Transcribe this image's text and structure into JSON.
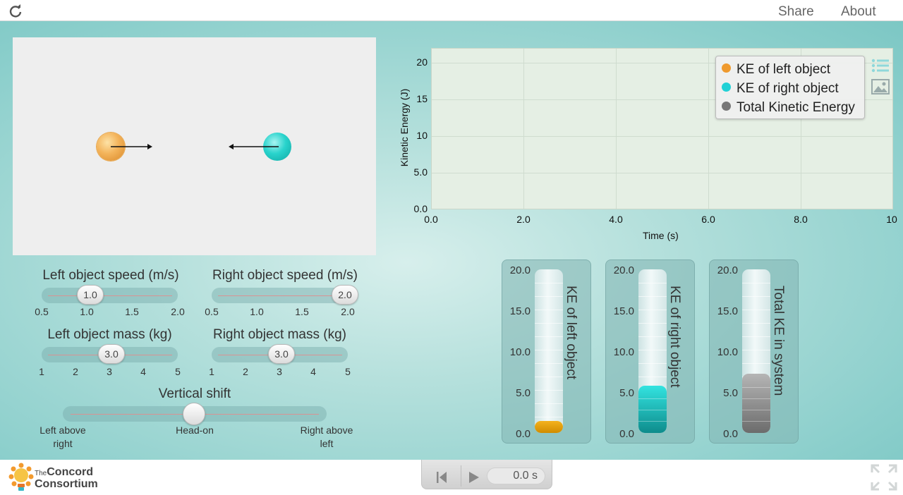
{
  "topbar": {
    "share": "Share",
    "about": "About"
  },
  "sliders": {
    "left_speed": {
      "label": "Left object speed (m/s)",
      "value": "1.0",
      "ticks": [
        "0.5",
        "1.0",
        "1.5",
        "2.0"
      ]
    },
    "right_speed": {
      "label": "Right object speed (m/s)",
      "value": "2.0",
      "ticks": [
        "0.5",
        "1.0",
        "1.5",
        "2.0"
      ]
    },
    "left_mass": {
      "label": "Left object mass (kg)",
      "value": "3.0",
      "ticks": [
        "1",
        "2",
        "3",
        "4",
        "5"
      ]
    },
    "right_mass": {
      "label": "Right object mass (kg)",
      "value": "3.0",
      "ticks": [
        "1",
        "2",
        "3",
        "4",
        "5"
      ]
    },
    "vertical_shift": {
      "label": "Vertical shift",
      "ticks": [
        "Left above\nright",
        "Head-on",
        "Right above\nleft"
      ],
      "selected": "Head-on"
    }
  },
  "graph": {
    "y_axis_label": "Kinetic Energy (J)",
    "x_axis_label": "Time (s)",
    "y_ticks": [
      "0.0",
      "5.0",
      "10",
      "15",
      "20"
    ],
    "x_ticks": [
      "0.0",
      "2.0",
      "4.0",
      "6.0",
      "8.0",
      "10"
    ],
    "legend": [
      {
        "label": "KE of left object",
        "color": "#ef9a2e"
      },
      {
        "label": "KE of right object",
        "color": "#22d1d6"
      },
      {
        "label": "Total Kinetic Energy",
        "color": "#777777"
      }
    ],
    "icons": [
      "list-icon",
      "image-icon"
    ]
  },
  "chart_data": {
    "type": "line",
    "xlabel": "Time (s)",
    "ylabel": "Kinetic Energy (J)",
    "xlim": [
      0,
      10
    ],
    "ylim": [
      0,
      22
    ],
    "series": [
      {
        "name": "KE of left object",
        "values": []
      },
      {
        "name": "KE of right object",
        "values": []
      },
      {
        "name": "Total Kinetic Energy",
        "values": []
      }
    ]
  },
  "meters": [
    {
      "label": "KE of left object",
      "ticks": [
        "20.0",
        "15.0",
        "10.0",
        "5.0",
        "0.0"
      ],
      "value": 1.5,
      "color_top": "#f4b21e",
      "color_bottom": "#d08c00"
    },
    {
      "label": "KE of right object",
      "ticks": [
        "20.0",
        "15.0",
        "10.0",
        "5.0",
        "0.0"
      ],
      "value": 6.0,
      "color_top": "#33e3e0",
      "color_bottom": "#0e8c8c"
    },
    {
      "label": "Total KE in system",
      "ticks": [
        "20.0",
        "15.0",
        "10.0",
        "5.0",
        "0.0"
      ],
      "value": 7.5,
      "color_top": "#b5b5b5",
      "color_bottom": "#6c6c6c"
    }
  ],
  "player": {
    "time": "0.0 s"
  },
  "logo": {
    "small": "The",
    "line1": "Concord",
    "line2": "Consortium"
  }
}
